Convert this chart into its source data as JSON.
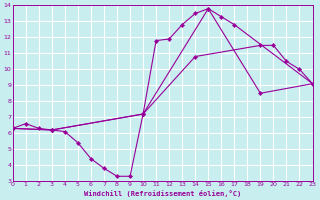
{
  "xlabel": "Windchill (Refroidissement éolien,°C)",
  "bg_color": "#c8eef0",
  "line_color": "#990099",
  "grid_color": "#ffffff",
  "xlim": [
    0,
    23
  ],
  "ylim": [
    3,
    14
  ],
  "xticks": [
    0,
    1,
    2,
    3,
    4,
    5,
    6,
    7,
    8,
    9,
    10,
    11,
    12,
    13,
    14,
    15,
    16,
    17,
    18,
    19,
    20,
    21,
    22,
    23
  ],
  "yticks": [
    3,
    4,
    5,
    6,
    7,
    8,
    9,
    10,
    11,
    12,
    13,
    14
  ],
  "line1_x": [
    0,
    1,
    2,
    3,
    4,
    5,
    6,
    7,
    8,
    9,
    10,
    11,
    12,
    13,
    14,
    15,
    16,
    17,
    23
  ],
  "line1_y": [
    6.3,
    6.6,
    6.3,
    6.2,
    6.1,
    5.4,
    4.4,
    3.8,
    3.3,
    3.3,
    7.2,
    11.8,
    11.9,
    12.8,
    13.5,
    13.8,
    13.3,
    12.8,
    9.1
  ],
  "line2_x": [
    0,
    3,
    10,
    14,
    19,
    20,
    21,
    22,
    23
  ],
  "line2_y": [
    6.3,
    6.2,
    7.2,
    10.8,
    11.5,
    11.5,
    10.5,
    10.0,
    9.1
  ],
  "line3_x": [
    0,
    3,
    10,
    15,
    19,
    23
  ],
  "line3_y": [
    6.3,
    6.2,
    7.2,
    13.8,
    8.5,
    9.1
  ]
}
